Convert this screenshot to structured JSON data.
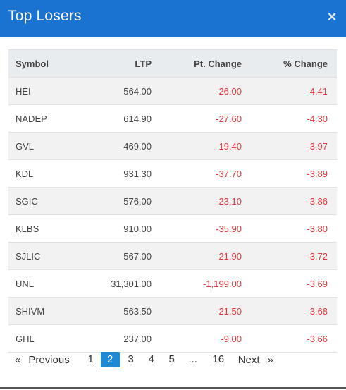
{
  "modal": {
    "title": "Top Losers",
    "close_glyph": "×"
  },
  "table": {
    "headers": {
      "symbol": "Symbol",
      "ltp": "LTP",
      "pt_change": "Pt. Change",
      "pct_change": "% Change"
    },
    "rows": [
      {
        "symbol": "HEI",
        "ltp": "564.00",
        "pt_change": "-26.00",
        "pct_change": "-4.41"
      },
      {
        "symbol": "NADEP",
        "ltp": "614.90",
        "pt_change": "-27.60",
        "pct_change": "-4.30"
      },
      {
        "symbol": "GVL",
        "ltp": "469.00",
        "pt_change": "-19.40",
        "pct_change": "-3.97"
      },
      {
        "symbol": "KDL",
        "ltp": "931.30",
        "pt_change": "-37.70",
        "pct_change": "-3.89"
      },
      {
        "symbol": "SGIC",
        "ltp": "576.00",
        "pt_change": "-23.10",
        "pct_change": "-3.86"
      },
      {
        "symbol": "KLBS",
        "ltp": "910.00",
        "pt_change": "-35.90",
        "pct_change": "-3.80"
      },
      {
        "symbol": "SJLIC",
        "ltp": "567.00",
        "pt_change": "-21.90",
        "pct_change": "-3.72"
      },
      {
        "symbol": "UNL",
        "ltp": "31,301.00",
        "pt_change": "-1,199.00",
        "pct_change": "-3.69"
      },
      {
        "symbol": "SHIVM",
        "ltp": "563.50",
        "pt_change": "-21.50",
        "pct_change": "-3.68"
      },
      {
        "symbol": "GHL",
        "ltp": "237.00",
        "pt_change": "-9.00",
        "pct_change": "-3.66"
      }
    ]
  },
  "pagination": {
    "prev_arrow": "«",
    "prev_label": "Previous",
    "pages": [
      "1",
      "2",
      "3",
      "4",
      "5",
      "...",
      "16"
    ],
    "current": "2",
    "next_label": "Next",
    "next_arrow": "»"
  },
  "colors": {
    "header_bg": "#1a73d1",
    "negative": "#e0393e",
    "active_page": "#1e8ad6"
  }
}
